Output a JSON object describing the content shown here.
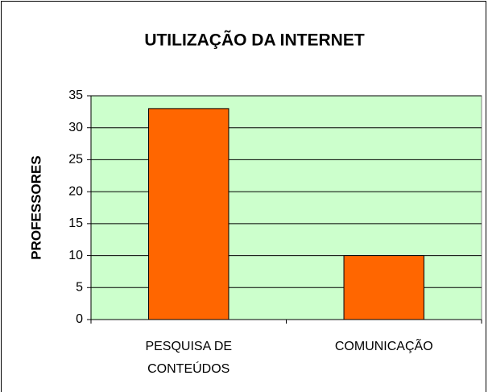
{
  "chart_data": {
    "type": "bar",
    "title": "UTILIZAÇÃO DA INTERNET",
    "y_label": "PROFESSORES",
    "categories": [
      "PESQUISA DE CONTEÚDOS",
      "COMUNICAÇÃO"
    ],
    "values": [
      33,
      10
    ],
    "color": "#ff6600",
    "plot_background": "#ccffcc",
    "ylim": [
      0,
      35
    ],
    "yticks": [
      0,
      5,
      10,
      15,
      20,
      25,
      30,
      35
    ],
    "grid": true
  }
}
